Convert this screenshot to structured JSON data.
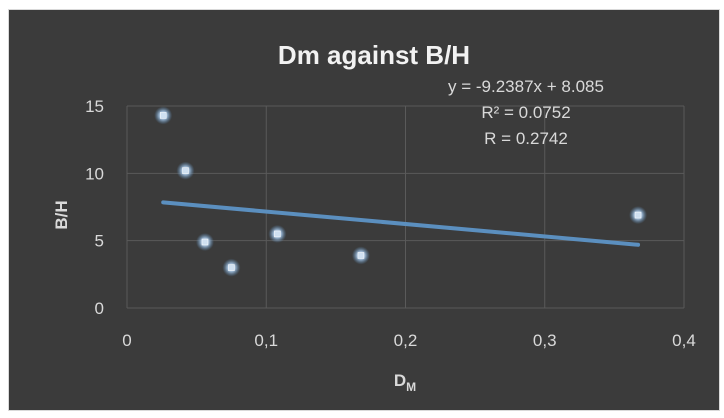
{
  "chart_data": {
    "type": "scatter",
    "title": "Dm against B/H",
    "xlabel_main": "D",
    "xlabel_sub": "M",
    "ylabel": "B/H",
    "xlim": [
      0,
      0.4
    ],
    "ylim": [
      0,
      15
    ],
    "x_ticks": [
      0,
      0.1,
      0.2,
      0.3,
      0.4
    ],
    "x_tick_labels": [
      "0",
      "0,1",
      "0,2",
      "0,3",
      "0,4"
    ],
    "y_ticks": [
      0,
      5,
      10,
      15
    ],
    "y_tick_labels": [
      "0",
      "5",
      "10",
      "15"
    ],
    "grid": true,
    "points": [
      {
        "x": 0.026,
        "y": 14.3
      },
      {
        "x": 0.042,
        "y": 10.2
      },
      {
        "x": 0.056,
        "y": 4.9
      },
      {
        "x": 0.075,
        "y": 3.0
      },
      {
        "x": 0.108,
        "y": 5.5
      },
      {
        "x": 0.168,
        "y": 3.9
      },
      {
        "x": 0.367,
        "y": 6.9
      }
    ],
    "trendline": {
      "slope": -9.2387,
      "intercept": 8.085,
      "x_range": [
        0.026,
        0.367
      ],
      "equation": "y = -9.2387x + 8.085",
      "r2_prefix": "R² = ",
      "r2_value": "0.0752",
      "r_label": "R = 0.2742"
    },
    "colors": {
      "background": "#3b3b3b",
      "grid": "#5a5a5a",
      "trendline": "#5b8fbf",
      "marker": "#cfe0f1",
      "marker_glow": "#6fa8dc",
      "text": "#d9d9d9",
      "title": "#f2f2f2"
    }
  }
}
